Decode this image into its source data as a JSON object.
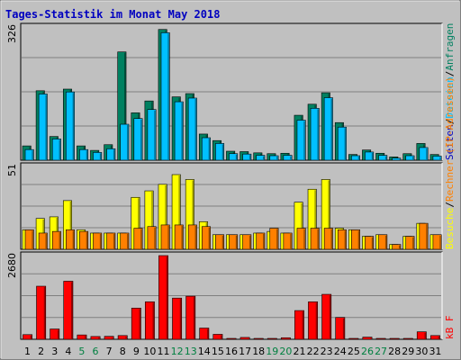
{
  "chart_data": {
    "type": "bar",
    "title": "Tages-Statistik im Monat May 2018",
    "categories": [
      "1",
      "2",
      "3",
      "4",
      "5",
      "6",
      "7",
      "8",
      "9",
      "10",
      "11",
      "12",
      "13",
      "14",
      "15",
      "16",
      "17",
      "18",
      "19",
      "20",
      "21",
      "22",
      "23",
      "24",
      "25",
      "26",
      "27",
      "28",
      "29",
      "30",
      "31"
    ],
    "weekend_days": [
      "5",
      "6",
      "12",
      "13",
      "19",
      "20",
      "26",
      "27"
    ],
    "colors": {
      "weekday_label": "#000000",
      "weekend_label": "#008040",
      "title": "#0000c0",
      "hits": "#008060",
      "files": "#00c0ff",
      "pages": "#0000c0",
      "sites": "#ff8000",
      "visits": "#ffff00",
      "kbytes": "#ff0000",
      "plot_bg": "#c0c0c0",
      "grid": "#808080"
    },
    "panels": [
      {
        "id": "top",
        "ymax_label": "326",
        "ylim": [
          0,
          326
        ],
        "legend": [
          {
            "text": "Anfragen",
            "color": "#008060"
          },
          {
            "text": "Dateien",
            "color": "#00c0ff"
          },
          {
            "text": "Seiten",
            "color": "#0000c0"
          }
        ],
        "legend_separator": "/",
        "series": [
          {
            "name": "Anfragen",
            "color": "#008060",
            "values": [
              35,
              170,
              58,
              174,
              35,
              24,
              38,
              265,
              116,
              145,
              320,
              155,
              163,
              64,
              48,
              22,
              21,
              18,
              16,
              17,
              110,
              137,
              165,
              92,
              14,
              25,
              17,
              8,
              16,
              41,
              14
            ]
          },
          {
            "name": "Dateien",
            "color": "#00c0ff",
            "values": [
              26,
              162,
              52,
              167,
              26,
              19,
              28,
              88,
              102,
              124,
              312,
              143,
              152,
              55,
              41,
              16,
              15,
              12,
              11,
              12,
              98,
              127,
              153,
              81,
              11,
              20,
              12,
              5,
              11,
              31,
              10
            ]
          }
        ]
      },
      {
        "id": "middle",
        "ymax_label": "51",
        "ylim": [
          0,
          51
        ],
        "legend": [
          {
            "text": "Rechner (IP-Adressen)",
            "color": "#ff8000"
          },
          {
            "text": "Besuche",
            "color": "#ffff00"
          }
        ],
        "legend_separator": "/",
        "series": [
          {
            "name": "Besuche",
            "color": "#ffff00",
            "values": [
              12,
              19,
              20,
              30,
              12,
              10,
              10,
              10,
              32,
              36,
              40,
              46,
              43,
              17,
              9,
              9,
              9,
              10,
              11,
              10,
              29,
              37,
              43,
              13,
              12,
              8,
              9,
              3,
              8,
              16,
              9
            ]
          },
          {
            "name": "Rechner (IP-Adressen)",
            "color": "#ff8000",
            "values": [
              12,
              10,
              11,
              12,
              11,
              10,
              10,
              10,
              13,
              14,
              15,
              15,
              15,
              14,
              9,
              9,
              9,
              10,
              13,
              10,
              13,
              13,
              13,
              12,
              12,
              8,
              9,
              3,
              8,
              16,
              9
            ]
          }
        ]
      },
      {
        "id": "bottom",
        "ymax_label": "2680",
        "ylim": [
          0,
          2680
        ],
        "legend": [
          {
            "text": "kB F",
            "color": "#ff0000"
          }
        ],
        "legend_separator": "",
        "series": [
          {
            "name": "kB F",
            "color": "#ff0000",
            "values": [
              150,
              1700,
              330,
              1860,
              140,
              90,
              95,
              120,
              1000,
              1200,
              2680,
              1320,
              1380,
              360,
              160,
              20,
              60,
              20,
              20,
              50,
              920,
              1200,
              1440,
              700,
              15,
              70,
              25,
              15,
              15,
              240,
              120
            ]
          }
        ]
      }
    ]
  }
}
